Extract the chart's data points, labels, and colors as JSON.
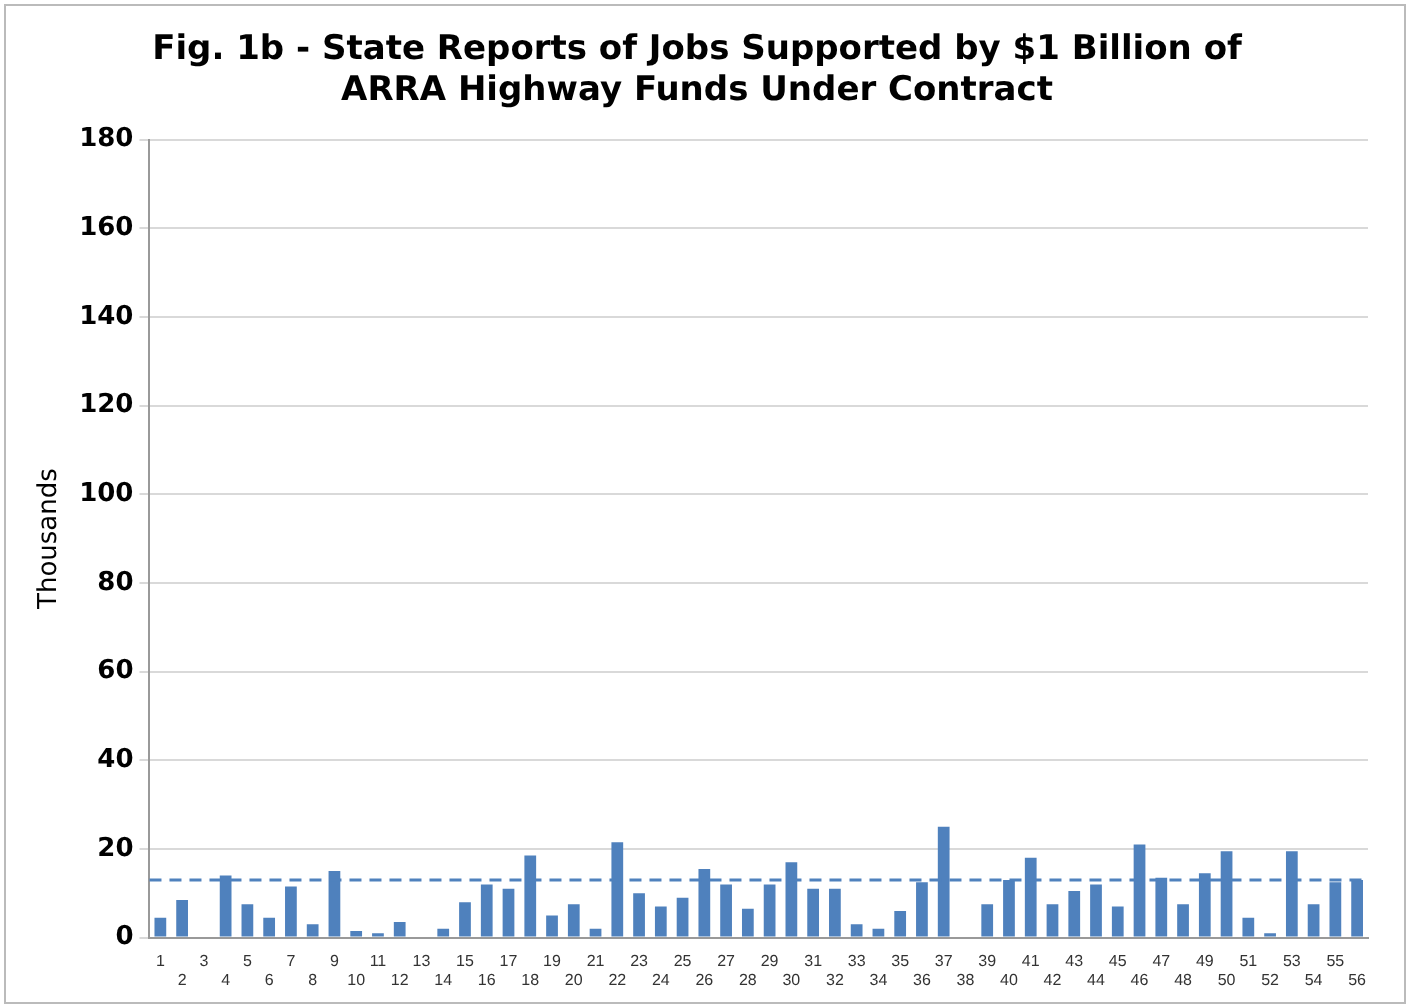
{
  "chart_data": {
    "type": "bar",
    "title": "Fig. 1b - State Reports of Jobs Supported by $1 Billion of ARRA Highway Funds Under Contract",
    "ylabel": "Thousands",
    "categories": [
      "1",
      "2",
      "3",
      "4",
      "5",
      "6",
      "7",
      "8",
      "9",
      "10",
      "11",
      "12",
      "13",
      "14",
      "15",
      "16",
      "17",
      "18",
      "19",
      "20",
      "21",
      "22",
      "23",
      "24",
      "25",
      "26",
      "27",
      "28",
      "29",
      "30",
      "31",
      "32",
      "33",
      "34",
      "35",
      "36",
      "37",
      "38",
      "39",
      "40",
      "41",
      "42",
      "43",
      "44",
      "45",
      "46",
      "47",
      "48",
      "49",
      "50",
      "51",
      "52",
      "53",
      "54",
      "55",
      "56"
    ],
    "values": [
      4.5,
      8.5,
      0,
      14,
      7.5,
      4.5,
      11.5,
      3,
      15,
      1.5,
      1,
      3.5,
      0,
      2,
      8,
      12,
      11,
      18.5,
      5,
      7.5,
      2,
      21.5,
      10,
      7,
      9,
      15.5,
      12,
      6.5,
      12,
      17,
      11,
      11,
      3,
      2,
      6,
      12.5,
      25,
      0,
      7.5,
      13,
      18,
      7.5,
      10.5,
      12,
      7,
      21,
      13.5,
      7.5,
      14.5,
      19.5,
      4.5,
      1,
      19.5,
      7.5,
      12.5,
      13
    ],
    "color": "#4f81bd",
    "ylim": [
      0,
      180
    ],
    "yticks": [
      0,
      20,
      40,
      60,
      80,
      100,
      120,
      140,
      160,
      180
    ],
    "grid": "y",
    "ref_lines": [
      {
        "axis": "y",
        "value": 13,
        "color": "#4f81bd",
        "line_style": "dashed"
      }
    ]
  }
}
